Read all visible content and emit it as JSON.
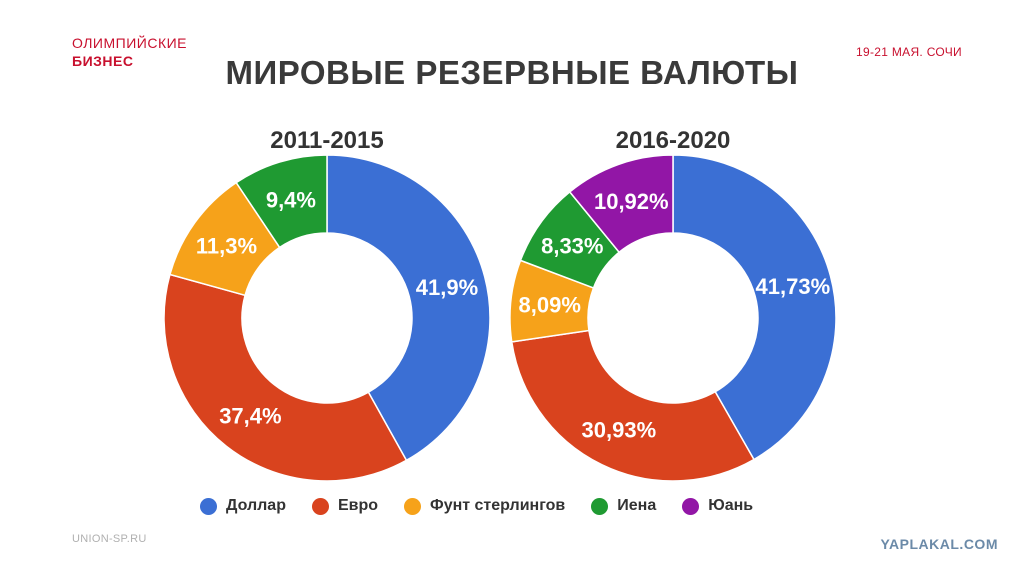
{
  "header": {
    "brand_line1": "ОЛИМПИЙСКИЕ",
    "brand_line2": "БИЗНЕС",
    "event": "19-21 МАЯ. СОЧИ",
    "title": "МИРОВЫЕ РЕЗЕРВНЫЕ ВАЛЮТЫ"
  },
  "footer": {
    "site": "UNION-SP.RU",
    "watermark": "YAPLAKAL.COM"
  },
  "colors": {
    "dollar": "#3b6fd4",
    "euro": "#d9431e",
    "pound": "#f6a21a",
    "yen": "#1f9a32",
    "yuan": "#9216a6"
  },
  "chart_data": [
    {
      "type": "pie",
      "title": "2011-2015",
      "categories": [
        "Доллар",
        "Евро",
        "Фунт стерлингов",
        "Иена"
      ],
      "values": [
        41.9,
        37.4,
        11.3,
        9.4
      ],
      "labels": [
        "41,9%",
        "37,4%",
        "11,3%",
        "9,4%"
      ],
      "legend": "bottom"
    },
    {
      "type": "pie",
      "title": "2016-2020",
      "categories": [
        "Доллар",
        "Евро",
        "Фунт стерлингов",
        "Иена",
        "Юань"
      ],
      "values": [
        41.73,
        30.93,
        8.09,
        8.33,
        10.92
      ],
      "labels": [
        "41,73%",
        "30,93%",
        "8,09%",
        "8,33%",
        "10,92%"
      ],
      "legend": "bottom"
    }
  ],
  "legend": [
    {
      "label": "Доллар",
      "color": "#3b6fd4"
    },
    {
      "label": "Евро",
      "color": "#d9431e"
    },
    {
      "label": "Фунт стерлингов",
      "color": "#f6a21a"
    },
    {
      "label": "Иена",
      "color": "#1f9a32"
    },
    {
      "label": "Юань",
      "color": "#9216a6"
    }
  ]
}
